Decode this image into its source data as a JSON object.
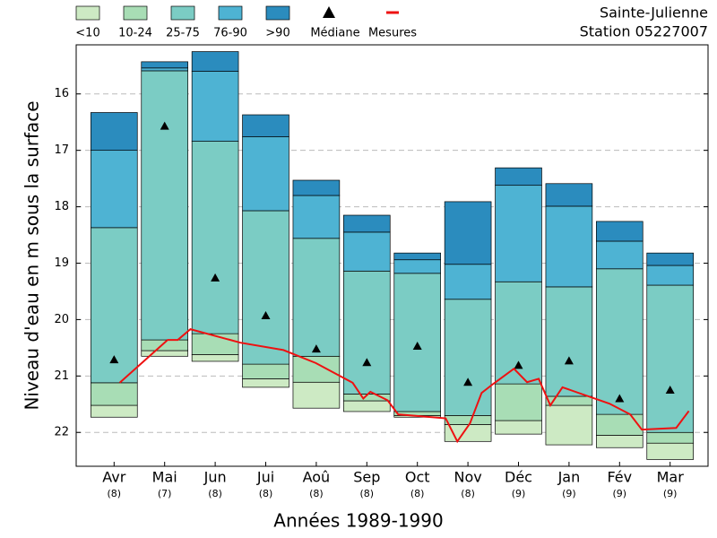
{
  "chart_data": {
    "type": "percentile_band",
    "station": "Sainte-Julienne",
    "station_id": "Station 05227007",
    "xlabel": "Années 1989-1990",
    "ylabel": "Niveau d'eau en m sous la surface",
    "categories": [
      "Avr",
      "Mai",
      "Jun",
      "Jui",
      "Aoû",
      "Sep",
      "Oct",
      "Nov",
      "Déc",
      "Jan",
      "Fév",
      "Mar"
    ],
    "category_counts": [
      "(8)",
      "(7)",
      "(8)",
      "(8)",
      "(8)",
      "(8)",
      "(8)",
      "(8)",
      "(9)",
      "(9)",
      "(9)",
      "(9)"
    ],
    "xlim": [
      -0.75,
      11.75
    ],
    "ylim": [
      15.13,
      22.6
    ],
    "y_inverted": true,
    "yticks": [
      16,
      17,
      18,
      19,
      20,
      21,
      22
    ],
    "grid": true,
    "base": [
      21.73,
      20.65,
      20.74,
      21.2,
      21.57,
      21.63,
      21.73,
      22.16,
      22.03,
      22.22,
      22.27,
      22.48
    ],
    "series": [
      {
        "name": "<10",
        "color": "#cdeac4",
        "values": [
          0.21,
          0.1,
          0.12,
          0.15,
          0.46,
          0.19,
          0.03,
          0.3,
          0.24,
          0.7,
          0.22,
          0.29
        ]
      },
      {
        "name": "10-24",
        "color": "#a8ddb5",
        "values": [
          0.4,
          0.19,
          0.37,
          0.26,
          0.46,
          0.12,
          0.07,
          0.16,
          0.65,
          0.16,
          0.37,
          0.19
        ]
      },
      {
        "name": "25-75",
        "color": "#7bccc4",
        "values": [
          2.75,
          4.77,
          3.41,
          2.72,
          2.09,
          2.18,
          2.45,
          2.06,
          1.81,
          1.94,
          2.58,
          2.61
        ]
      },
      {
        "name": "76-90",
        "color": "#4eb3d3",
        "values": [
          1.37,
          0.05,
          1.24,
          1.31,
          0.76,
          0.69,
          0.24,
          0.62,
          1.71,
          1.43,
          0.49,
          0.35
        ]
      },
      {
        "name": ">90",
        "color": "#2b8cbe",
        "values": [
          0.67,
          0.11,
          0.35,
          0.39,
          0.27,
          0.3,
          0.12,
          1.11,
          0.31,
          0.4,
          0.35,
          0.22
        ]
      }
    ],
    "median": {
      "name": "Médiane",
      "color": "#000000",
      "values": [
        20.71,
        16.57,
        19.26,
        19.93,
        20.52,
        20.76,
        20.47,
        21.11,
        20.81,
        20.73,
        21.4,
        21.25
      ]
    },
    "measures": {
      "name": "Mesures",
      "color": "#ee1111",
      "x": [
        0.11,
        1.06,
        1.26,
        1.51,
        2.5,
        3.35,
        3.99,
        4.72,
        4.93,
        5.07,
        5.41,
        5.62,
        6.56,
        6.79,
        7.04,
        7.27,
        7.5,
        7.91,
        8.17,
        8.4,
        8.63,
        8.87,
        9.8,
        10.21,
        10.44,
        11.12,
        11.37
      ],
      "values": [
        21.12,
        20.36,
        20.36,
        20.17,
        20.41,
        20.54,
        20.77,
        21.12,
        21.4,
        21.28,
        21.43,
        21.68,
        21.75,
        22.16,
        21.84,
        21.3,
        21.14,
        20.87,
        21.11,
        21.05,
        21.52,
        21.2,
        21.49,
        21.68,
        21.95,
        21.92,
        21.62
      ]
    }
  }
}
